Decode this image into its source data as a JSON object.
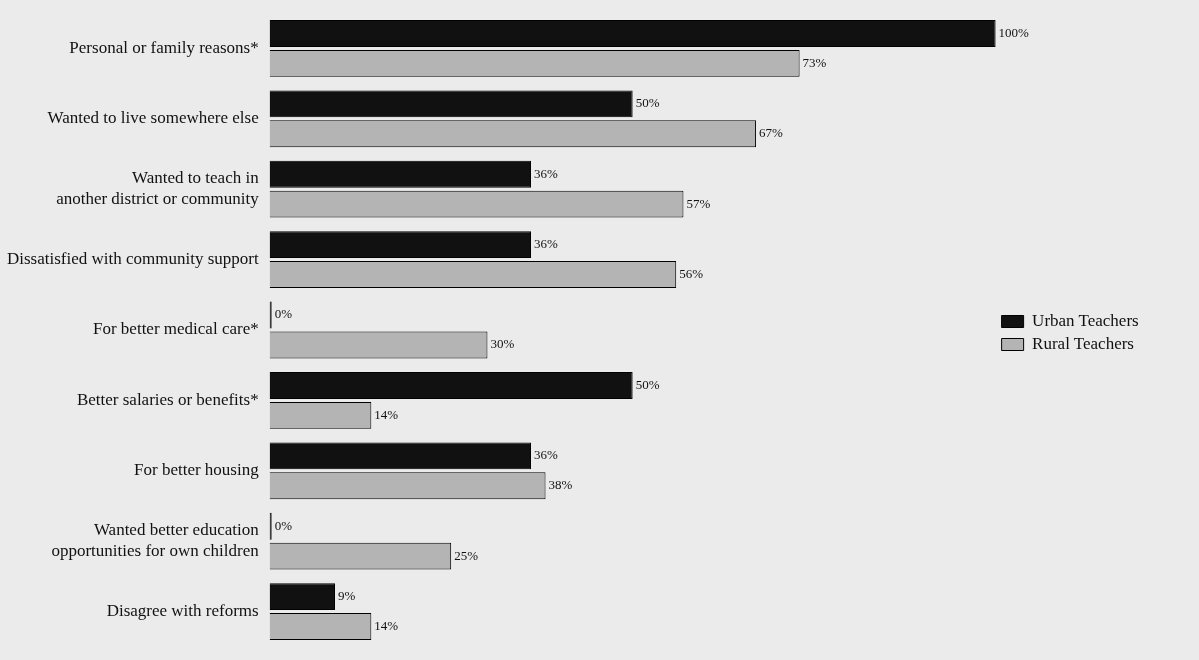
{
  "chart_data": {
    "type": "bar",
    "orientation": "horizontal",
    "legend": "right",
    "categories": [
      "Personal or family reasons*",
      "Wanted to live somewhere else",
      "Wanted to teach in\nanother district or community",
      "Dissatisfied with community support",
      "For better medical care*",
      "Better salaries or benefits*",
      "For better housing",
      "Wanted better education\nopportunities for own children",
      "Disagree with reforms"
    ],
    "series": [
      {
        "name": "Urban Teachers",
        "color": "#111111",
        "values": [
          100,
          50,
          36,
          36,
          0,
          50,
          36,
          0,
          9
        ],
        "value_labels": [
          "100%",
          "50%",
          "36%",
          "36%",
          "0%",
          "50%",
          "36%",
          "0%",
          "9%"
        ]
      },
      {
        "name": "Rural Teachers",
        "color": "#b4b4b4",
        "values": [
          73,
          67,
          57,
          56,
          30,
          14,
          38,
          25,
          14
        ],
        "value_labels": [
          "73%",
          "67%",
          "57%",
          "56%",
          "30%",
          "14%",
          "38%",
          "25%",
          "14%"
        ]
      }
    ]
  }
}
